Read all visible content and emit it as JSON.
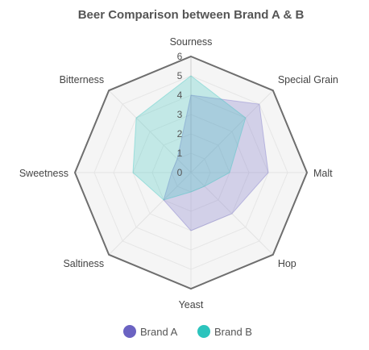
{
  "chart_data": {
    "type": "radar",
    "title": "Beer Comparison between Brand A & B",
    "axes": [
      "Sourness",
      "Special Grain",
      "Malt",
      "Hop",
      "Yeast",
      "Saltiness",
      "Sweetness",
      "Bitterness"
    ],
    "rlim": [
      0,
      6
    ],
    "ticks": [
      "0",
      "1",
      "2",
      "3",
      "4",
      "5",
      "6"
    ],
    "grid": true,
    "legend_position": "bottom",
    "series": [
      {
        "name": "Brand A",
        "values": [
          4,
          5,
          4,
          3,
          3,
          2,
          1,
          1
        ],
        "color": "#6B63C2"
      },
      {
        "name": "Brand B",
        "values": [
          5,
          4,
          2,
          1,
          1,
          2,
          3,
          4
        ],
        "color": "#2CC4BD"
      }
    ]
  }
}
